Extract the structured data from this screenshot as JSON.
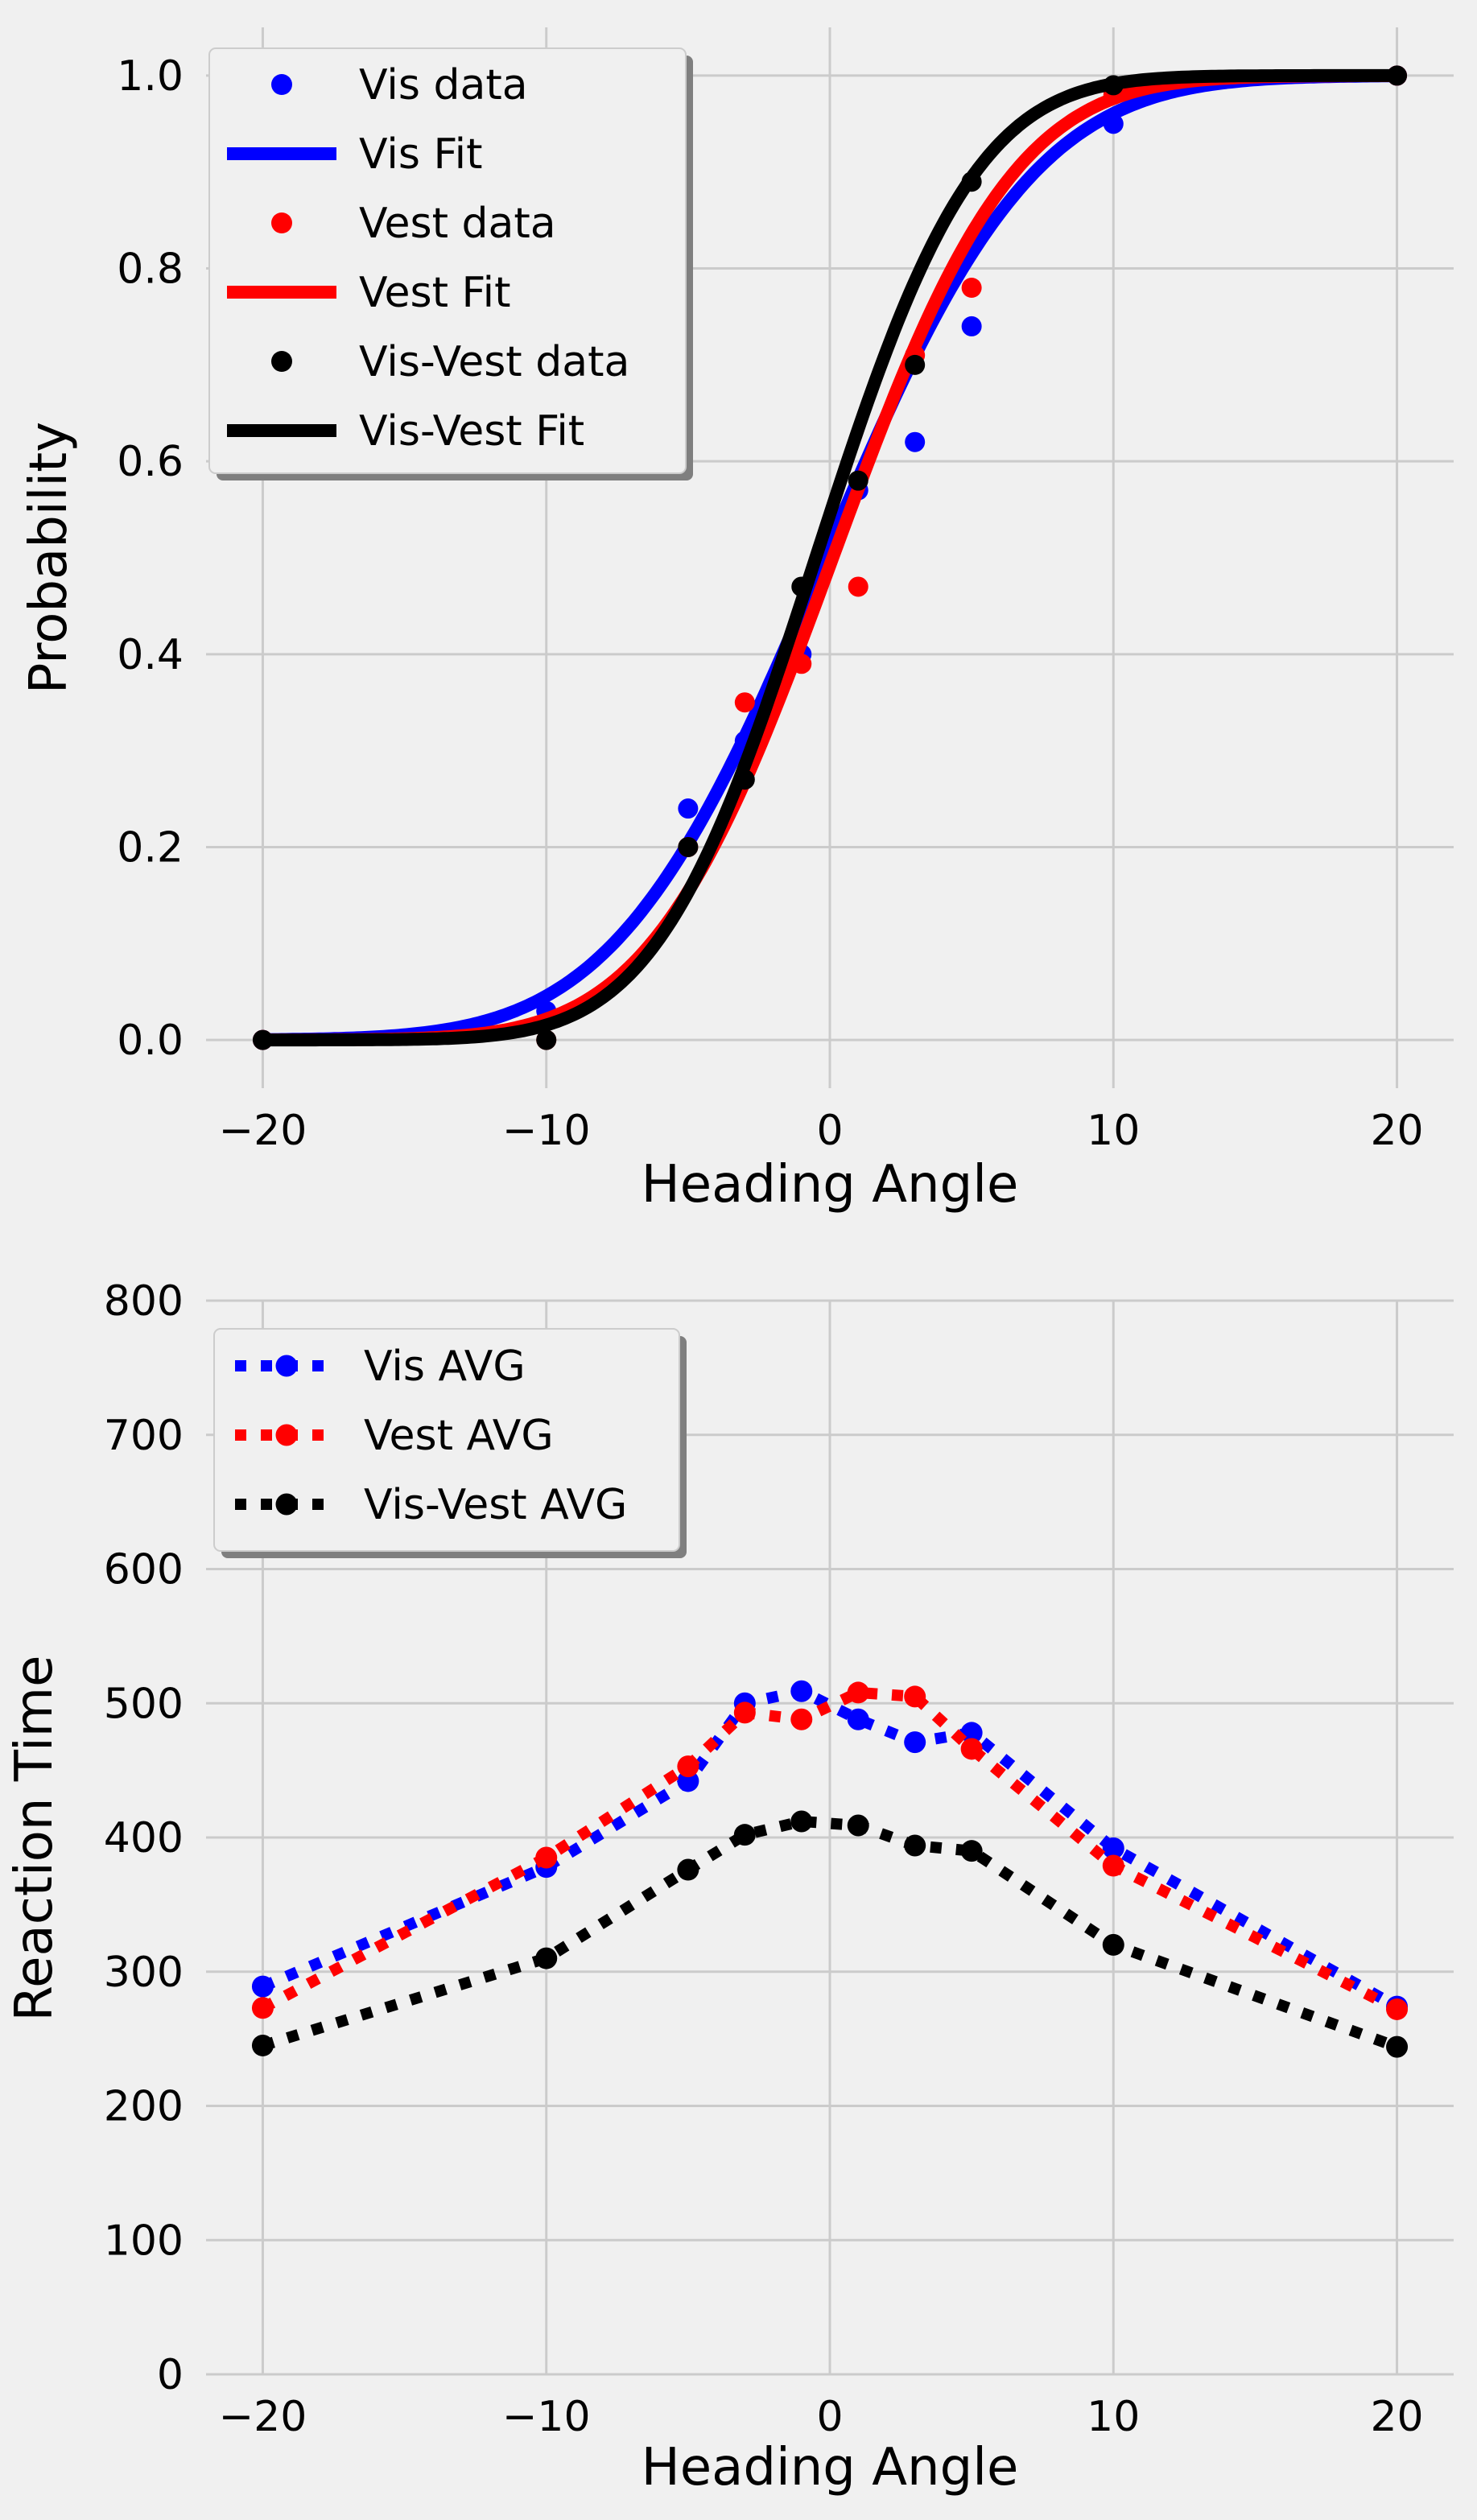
{
  "colors": {
    "background": "#f0f0f0",
    "grid": "#cbcbcb",
    "vis": "#0000ff",
    "vest": "#ff0000",
    "visvest": "#000000"
  },
  "chart_data": [
    {
      "type": "scatter",
      "title": "",
      "xlabel": "Heading Angle",
      "ylabel": "Probability",
      "xlim": [
        -22,
        22
      ],
      "ylim": [
        -0.05,
        1.05
      ],
      "xticks": [
        -20,
        -10,
        0,
        10,
        20
      ],
      "xtick_labels": [
        "−20",
        "−10",
        "0",
        "10",
        "20"
      ],
      "yticks": [
        0.0,
        0.2,
        0.4,
        0.6,
        0.8,
        1.0
      ],
      "ytick_labels": [
        "0.0",
        "0.2",
        "0.4",
        "0.6",
        "0.8",
        "1.0"
      ],
      "grid": true,
      "legend_position": "upper-left",
      "legend": [
        "Vis data",
        "Vis Fit",
        "Vest data",
        "Vest Fit",
        "Vis-Vest data",
        "Vis-Vest Fit"
      ],
      "x": [
        -20,
        -10,
        -5,
        -3,
        -1,
        1,
        3,
        5,
        10,
        20
      ],
      "series": [
        {
          "name": "Vis data",
          "kind": "points",
          "color": "#0000ff",
          "values": [
            0.0,
            0.03,
            0.24,
            0.31,
            0.4,
            0.57,
            0.62,
            0.74,
            0.95,
            1.0
          ]
        },
        {
          "name": "Vis Fit",
          "kind": "cumulative-normal",
          "color": "#0000ff",
          "mu": -0.2,
          "sigma": 5.8
        },
        {
          "name": "Vest data",
          "kind": "points",
          "color": "#ff0000",
          "values": [
            0.0,
            0.0,
            0.2,
            0.35,
            0.39,
            0.47,
            0.71,
            0.78,
            0.98,
            1.0
          ]
        },
        {
          "name": "Vest Fit",
          "kind": "cumulative-normal",
          "color": "#ff0000",
          "mu": 0.1,
          "sigma": 5.0
        },
        {
          "name": "Vis-Vest data",
          "kind": "points",
          "color": "#000000",
          "values": [
            0.0,
            0.0,
            0.2,
            0.27,
            0.47,
            0.58,
            0.7,
            0.89,
            0.99,
            1.0
          ]
        },
        {
          "name": "Vis-Vest Fit",
          "kind": "cumulative-normal",
          "color": "#000000",
          "mu": -0.5,
          "sigma": 4.4
        }
      ]
    },
    {
      "type": "line",
      "title": "",
      "xlabel": "Heading Angle",
      "ylabel": "Reaction Time",
      "xlim": [
        -22,
        22
      ],
      "ylim": [
        0,
        800
      ],
      "xticks": [
        -20,
        -10,
        0,
        10,
        20
      ],
      "xtick_labels": [
        "−20",
        "−10",
        "0",
        "10",
        "20"
      ],
      "yticks": [
        0,
        100,
        200,
        300,
        400,
        500,
        600,
        700,
        800
      ],
      "ytick_labels": [
        "0",
        "100",
        "200",
        "300",
        "400",
        "500",
        "600",
        "700",
        "800"
      ],
      "grid": true,
      "legend_position": "upper-left",
      "legend": [
        "Vis AVG",
        "Vest AVG",
        "Vis-Vest AVG"
      ],
      "x": [
        -20,
        -10,
        -5,
        -3,
        -1,
        1,
        3,
        5,
        10,
        20
      ],
      "series": [
        {
          "name": "Vis AVG",
          "line_style": "dotted",
          "color": "#0000ff",
          "values": [
            289,
            378,
            442,
            500,
            509,
            488,
            471,
            478,
            392,
            274
          ]
        },
        {
          "name": "Vest AVG",
          "line_style": "dotted",
          "color": "#ff0000",
          "values": [
            273,
            385,
            453,
            493,
            488,
            508,
            505,
            466,
            379,
            272
          ]
        },
        {
          "name": "Vis-Vest AVG",
          "line_style": "dotted",
          "color": "#000000",
          "values": [
            245,
            310,
            376,
            402,
            412,
            409,
            394,
            390,
            320,
            244
          ]
        }
      ]
    }
  ]
}
